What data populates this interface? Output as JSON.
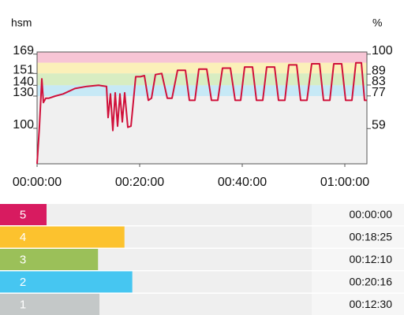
{
  "chart_data": [
    {
      "type": "line",
      "y_label": "hsm",
      "y2_label": "%",
      "color": "#d0103a",
      "x": [
        0,
        0.46,
        0.92,
        1.23,
        1.69,
        2.31,
        3.54,
        5.08,
        7.38,
        9.69,
        12.0,
        13.54,
        13.85,
        14.31,
        14.77,
        15.23,
        15.69,
        16.15,
        16.62,
        17.08,
        17.69,
        18.31,
        19.23,
        20.15,
        20.92,
        21.69,
        22.31,
        23.08,
        24.31,
        25.38,
        26.31,
        27.38,
        28.92,
        29.69,
        30.77,
        31.54,
        33.08,
        34.0,
        35.23,
        36.15,
        37.69,
        38.62,
        39.69,
        40.46,
        42.0,
        42.77,
        44.0,
        44.77,
        46.31,
        47.08,
        48.31,
        49.08,
        50.62,
        51.38,
        52.62,
        53.54,
        55.08,
        55.85,
        57.08,
        57.85,
        59.38,
        60.15,
        61.38,
        62.15,
        63.23,
        63.85,
        64.31
      ],
      "values": [
        67,
        102,
        146,
        124,
        128,
        128,
        130,
        132,
        137,
        139,
        140,
        139,
        110,
        132,
        98,
        133,
        102,
        132,
        106,
        133,
        101,
        102,
        148,
        148,
        149,
        126,
        128,
        150,
        151,
        128,
        128,
        154,
        154,
        126,
        126,
        155,
        155,
        126,
        126,
        156,
        156,
        126,
        126,
        157,
        157,
        126,
        126,
        157,
        157,
        126,
        126,
        159,
        159,
        126,
        126,
        160,
        160,
        126,
        126,
        160,
        160,
        126,
        126,
        161,
        161,
        126,
        126
      ],
      "xlim": [
        0,
        64.31
      ],
      "xticks": [
        {
          "value": 0,
          "label": "00:00:00"
        },
        {
          "value": 20,
          "label": "00:20:00"
        },
        {
          "value": 40,
          "label": "00:40:00"
        },
        {
          "value": 60,
          "label": "01:00:00"
        }
      ],
      "ylim": [
        67,
        171
      ],
      "yticks": [
        100,
        130,
        140,
        151,
        169
      ],
      "y2lim": [
        39.6,
        101.2
      ],
      "y2ticks": [
        59,
        77,
        83,
        89,
        100
      ],
      "bands": [
        {
          "from": 161,
          "to": 171,
          "color": "#f7c5d5"
        },
        {
          "from": 151,
          "to": 161,
          "color": "#fbf0b9"
        },
        {
          "from": 140,
          "to": 151,
          "color": "#d8edc2"
        },
        {
          "from": 130,
          "to": 140,
          "color": "#c7e9f6"
        }
      ]
    },
    {
      "type": "hbar",
      "categories": [
        "5",
        "4",
        "3",
        "2",
        "1"
      ],
      "values": [
        0,
        1105,
        730,
        1216,
        750
      ],
      "value_labels": [
        "00:00:00",
        "00:18:25",
        "00:12:10",
        "00:20:16",
        "00:12:30"
      ],
      "colors": [
        "#d81b60",
        "#fcc22e",
        "#9bc059",
        "#46c6f1",
        "#c4c8c8"
      ],
      "xlim": [
        0,
        3760
      ]
    }
  ]
}
